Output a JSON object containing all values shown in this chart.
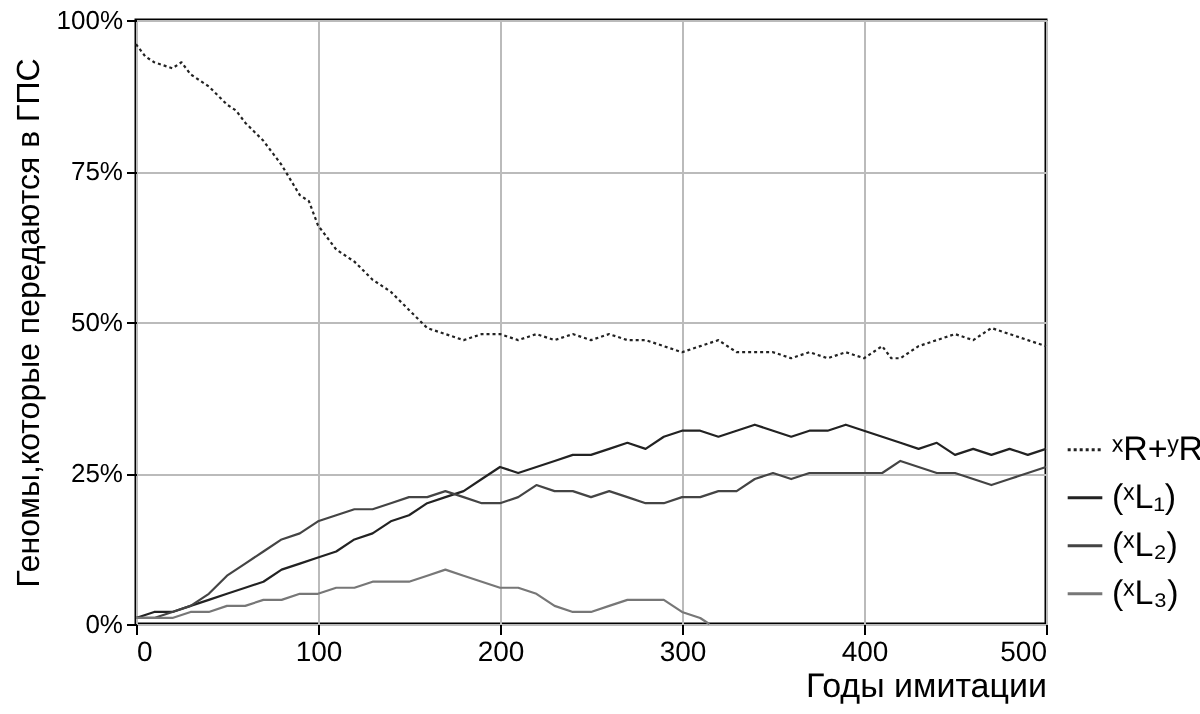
{
  "chart_data": {
    "type": "line",
    "xlabel": "Годы имитации",
    "ylabel": "Геномы,которые передаются в ГПС",
    "xlim": [
      0,
      500
    ],
    "xticks": [
      0,
      100,
      200,
      300,
      400,
      500
    ],
    "ylim": [
      0,
      100
    ],
    "yticks": [
      {
        "value": 0,
        "label": "0%"
      },
      {
        "value": 25,
        "label": "25%"
      },
      {
        "value": 50,
        "label": "50%"
      },
      {
        "value": 75,
        "label": "75%"
      },
      {
        "value": 100,
        "label": "100%"
      }
    ],
    "grid": true,
    "legend": "right",
    "series": [
      {
        "name": "ˣR+ʸR",
        "color": "#222222",
        "line_style": "dotted",
        "x": [
          0,
          5,
          10,
          20,
          25,
          30,
          40,
          50,
          55,
          60,
          70,
          80,
          90,
          95,
          100,
          110,
          120,
          130,
          140,
          150,
          160,
          170,
          180,
          190,
          200,
          210,
          220,
          230,
          240,
          250,
          260,
          270,
          280,
          290,
          300,
          310,
          320,
          330,
          340,
          350,
          360,
          370,
          380,
          390,
          400,
          410,
          415,
          420,
          430,
          440,
          450,
          460,
          470,
          480,
          490,
          500
        ],
        "values": [
          96,
          94,
          93,
          92,
          93,
          91,
          89,
          86,
          85,
          83,
          80,
          76,
          71,
          70,
          66,
          62,
          60,
          57,
          55,
          52,
          49,
          48,
          47,
          48,
          48,
          47,
          48,
          47,
          48,
          47,
          48,
          47,
          47,
          46,
          45,
          46,
          47,
          45,
          45,
          45,
          44,
          45,
          44,
          45,
          44,
          46,
          44,
          44,
          46,
          47,
          48,
          47,
          49,
          48,
          47,
          46
        ]
      },
      {
        "name": "(ˣL₁)",
        "color": "#222222",
        "line_style": "solid",
        "x": [
          0,
          10,
          20,
          30,
          40,
          50,
          60,
          70,
          80,
          90,
          100,
          110,
          120,
          130,
          140,
          150,
          160,
          170,
          180,
          190,
          200,
          210,
          220,
          230,
          240,
          250,
          260,
          270,
          280,
          290,
          300,
          310,
          320,
          330,
          340,
          350,
          360,
          370,
          380,
          390,
          400,
          410,
          420,
          430,
          440,
          450,
          460,
          470,
          480,
          490,
          500
        ],
        "values": [
          1,
          2,
          2,
          3,
          4,
          5,
          6,
          7,
          9,
          10,
          11,
          12,
          14,
          15,
          17,
          18,
          20,
          21,
          22,
          24,
          26,
          25,
          26,
          27,
          28,
          28,
          29,
          30,
          29,
          31,
          32,
          32,
          31,
          32,
          33,
          32,
          31,
          32,
          32,
          33,
          32,
          31,
          30,
          29,
          30,
          28,
          29,
          28,
          29,
          28,
          29
        ]
      },
      {
        "name": "(ˣL₂)",
        "color": "#444444",
        "line_style": "solid",
        "x": [
          0,
          10,
          20,
          30,
          40,
          50,
          60,
          70,
          80,
          90,
          100,
          110,
          120,
          130,
          140,
          150,
          160,
          170,
          180,
          190,
          200,
          210,
          220,
          230,
          240,
          250,
          260,
          270,
          280,
          290,
          300,
          310,
          320,
          330,
          340,
          350,
          360,
          370,
          380,
          390,
          400,
          410,
          420,
          430,
          440,
          450,
          460,
          470,
          480,
          490,
          500
        ],
        "values": [
          1,
          1,
          2,
          3,
          5,
          8,
          10,
          12,
          14,
          15,
          17,
          18,
          19,
          19,
          20,
          21,
          21,
          22,
          21,
          20,
          20,
          21,
          23,
          22,
          22,
          21,
          22,
          21,
          20,
          20,
          21,
          21,
          22,
          22,
          24,
          25,
          24,
          25,
          25,
          25,
          25,
          25,
          27,
          26,
          25,
          25,
          24,
          23,
          24,
          25,
          26
        ]
      },
      {
        "name": "(ˣL₃)",
        "color": "#777777",
        "line_style": "solid",
        "x": [
          0,
          10,
          20,
          30,
          40,
          50,
          60,
          70,
          80,
          90,
          100,
          110,
          120,
          130,
          140,
          150,
          160,
          170,
          180,
          190,
          200,
          210,
          220,
          230,
          240,
          250,
          260,
          270,
          280,
          290,
          300,
          310,
          315
        ],
        "values": [
          1,
          1,
          1,
          2,
          2,
          3,
          3,
          4,
          4,
          5,
          5,
          6,
          6,
          7,
          7,
          7,
          8,
          9,
          8,
          7,
          6,
          6,
          5,
          3,
          2,
          2,
          3,
          4,
          4,
          4,
          2,
          1,
          0
        ]
      }
    ]
  }
}
